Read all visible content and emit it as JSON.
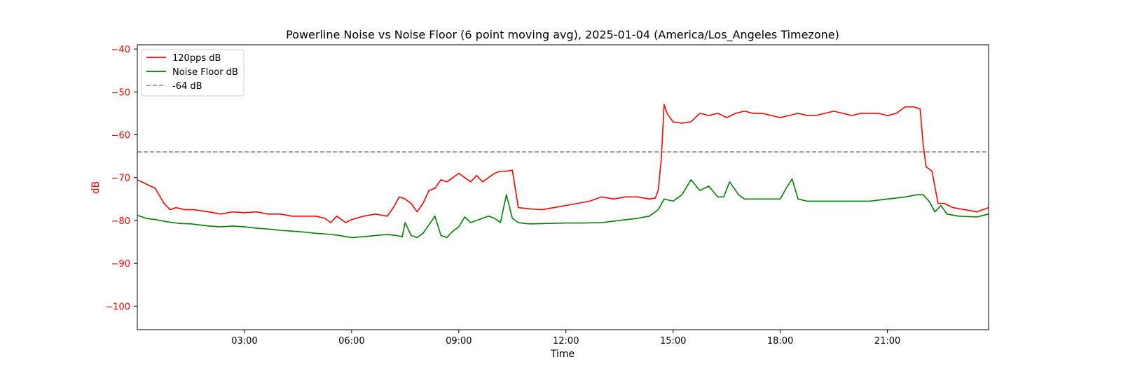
{
  "chart_data": {
    "type": "line",
    "title": "Powerline Noise vs Noise Floor (6 point moving avg), 2025-01-04 (America/Los_Angeles Timezone)",
    "xlabel": "Time",
    "ylabel": "dB",
    "xlim": [
      "00:00",
      "23:50"
    ],
    "ylim": [
      -105.5,
      -39
    ],
    "x_ticks": [
      "03:00",
      "06:00",
      "09:00",
      "12:00",
      "15:00",
      "18:00",
      "21:00"
    ],
    "y_ticks": [
      -40,
      -50,
      -60,
      -70,
      -80,
      -90,
      -100
    ],
    "y_tick_color": "#ff0000",
    "grid": false,
    "legend": {
      "position": "top-left"
    },
    "series": [
      {
        "name": "120pps dB",
        "color": "#ff0000",
        "style": "solid",
        "x": [
          "00:00",
          "00:15",
          "00:30",
          "00:45",
          "00:55",
          "01:05",
          "01:20",
          "01:35",
          "02:00",
          "02:20",
          "02:40",
          "03:00",
          "03:20",
          "03:40",
          "04:00",
          "04:20",
          "04:40",
          "05:00",
          "05:15",
          "05:25",
          "05:35",
          "05:50",
          "06:00",
          "06:20",
          "06:40",
          "07:00",
          "07:10",
          "07:20",
          "07:30",
          "07:40",
          "07:50",
          "08:00",
          "08:10",
          "08:20",
          "08:30",
          "08:40",
          "08:50",
          "09:00",
          "09:10",
          "09:20",
          "09:30",
          "09:40",
          "09:50",
          "10:00",
          "10:10",
          "10:20",
          "10:30",
          "10:40",
          "11:00",
          "11:20",
          "11:40",
          "12:00",
          "12:20",
          "12:40",
          "13:00",
          "13:20",
          "13:40",
          "14:00",
          "14:20",
          "14:30",
          "14:35",
          "14:40",
          "14:45",
          "14:50",
          "15:00",
          "15:15",
          "15:30",
          "15:45",
          "16:00",
          "16:15",
          "16:30",
          "16:45",
          "17:00",
          "17:15",
          "17:30",
          "17:45",
          "18:00",
          "18:15",
          "18:30",
          "18:45",
          "19:00",
          "19:15",
          "19:30",
          "19:45",
          "20:00",
          "20:15",
          "20:30",
          "20:45",
          "21:00",
          "21:15",
          "21:30",
          "21:45",
          "21:55",
          "22:00",
          "22:05",
          "22:15",
          "22:25",
          "22:35",
          "22:50",
          "23:10",
          "23:30",
          "23:50"
        ],
        "values": [
          -70.5,
          -71.5,
          -72.5,
          -76,
          -77.5,
          -77,
          -77.5,
          -77.5,
          -78,
          -78.5,
          -78,
          -78.2,
          -78,
          -78.5,
          -78.5,
          -79,
          -79,
          -79,
          -79.5,
          -80.5,
          -79,
          -80.5,
          -79.8,
          -79,
          -78.5,
          -79,
          -77,
          -74.5,
          -75,
          -76,
          -78,
          -76,
          -73,
          -72.5,
          -70.5,
          -71,
          -70,
          -69,
          -70,
          -71,
          -69.5,
          -71,
          -70,
          -69,
          -68.5,
          -68.5,
          -68.3,
          -77,
          -77.3,
          -77.5,
          -77,
          -76.5,
          -76,
          -75.5,
          -74.5,
          -75,
          -74.5,
          -74.5,
          -75,
          -74.8,
          -73,
          -66,
          -53,
          -55,
          -57,
          -57.3,
          -57,
          -55,
          -55.5,
          -55,
          -56,
          -55,
          -54.5,
          -55,
          -55,
          -55.5,
          -56,
          -55.5,
          -55,
          -55.5,
          -55.5,
          -55,
          -54.5,
          -55,
          -55.5,
          -55,
          -55,
          -55,
          -55.5,
          -55,
          -53.5,
          -53.5,
          -54,
          -62,
          -67.5,
          -68.5,
          -76,
          -76,
          -77,
          -77.5,
          -78,
          -77
        ]
      },
      {
        "name": "Noise Floor dB",
        "color": "#008000",
        "style": "solid",
        "x": [
          "00:00",
          "00:15",
          "00:30",
          "00:50",
          "01:10",
          "01:30",
          "02:00",
          "02:20",
          "02:40",
          "03:00",
          "03:20",
          "03:40",
          "04:00",
          "04:20",
          "04:40",
          "05:00",
          "05:20",
          "05:40",
          "06:00",
          "06:20",
          "06:40",
          "07:00",
          "07:15",
          "07:25",
          "07:30",
          "07:40",
          "07:50",
          "08:00",
          "08:10",
          "08:20",
          "08:30",
          "08:40",
          "08:50",
          "09:00",
          "09:10",
          "09:20",
          "09:30",
          "09:40",
          "09:50",
          "10:00",
          "10:10",
          "10:20",
          "10:30",
          "10:40",
          "10:50",
          "11:00",
          "11:30",
          "12:00",
          "12:30",
          "13:00",
          "13:30",
          "14:00",
          "14:20",
          "14:35",
          "14:45",
          "15:00",
          "15:15",
          "15:30",
          "15:45",
          "16:00",
          "16:15",
          "16:25",
          "16:35",
          "16:50",
          "17:00",
          "17:30",
          "18:00",
          "18:10",
          "18:20",
          "18:30",
          "18:45",
          "19:00",
          "19:30",
          "20:00",
          "20:30",
          "21:00",
          "21:30",
          "21:50",
          "22:00",
          "22:10",
          "22:20",
          "22:30",
          "22:40",
          "23:00",
          "23:30",
          "23:50"
        ],
        "values": [
          -78.8,
          -79.5,
          -79.8,
          -80.3,
          -80.7,
          -80.8,
          -81.3,
          -81.5,
          -81.3,
          -81.5,
          -81.8,
          -82,
          -82.3,
          -82.5,
          -82.7,
          -83,
          -83.2,
          -83.5,
          -84,
          -83.8,
          -83.5,
          -83.3,
          -83.5,
          -83.8,
          -80.5,
          -83.5,
          -84,
          -83,
          -81,
          -79,
          -83.5,
          -84,
          -82.5,
          -81.5,
          -79.2,
          -80.5,
          -80,
          -79.5,
          -79,
          -79.5,
          -80.5,
          -74,
          -79.5,
          -80.5,
          -80.7,
          -80.8,
          -80.7,
          -80.6,
          -80.6,
          -80.5,
          -80,
          -79.5,
          -79,
          -77.5,
          -75,
          -75.5,
          -74,
          -70.5,
          -73,
          -72,
          -74.5,
          -74.5,
          -71,
          -74,
          -75,
          -75,
          -75,
          -72.5,
          -70.3,
          -75,
          -75.5,
          -75.5,
          -75.5,
          -75.5,
          -75.5,
          -75,
          -74.5,
          -74,
          -74,
          -75.5,
          -78,
          -76.5,
          -78.5,
          -79,
          -79.2,
          -78.5
        ]
      },
      {
        "name": "-64 dB",
        "color": "#808080",
        "style": "dashed",
        "y": -64
      }
    ]
  }
}
